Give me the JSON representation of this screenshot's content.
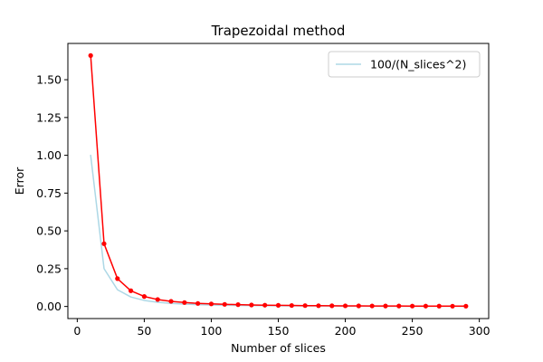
{
  "chart_data": {
    "type": "line",
    "title": "Trapezoidal method",
    "xlabel": "Number of slices",
    "ylabel": "Error",
    "xlim": [
      -7,
      307
    ],
    "ylim": [
      -0.08,
      1.74
    ],
    "xticks": [
      0,
      50,
      100,
      150,
      200,
      250,
      300
    ],
    "xtick_labels": [
      "0",
      "50",
      "100",
      "150",
      "200",
      "250",
      "300"
    ],
    "yticks": [
      0.0,
      0.25,
      0.5,
      0.75,
      1.0,
      1.25,
      1.5
    ],
    "ytick_labels": [
      "0.00",
      "0.25",
      "0.50",
      "0.75",
      "1.00",
      "1.25",
      "1.50"
    ],
    "grid": false,
    "legend_position": "top-right",
    "x": [
      10,
      20,
      30,
      40,
      50,
      60,
      70,
      80,
      90,
      100,
      110,
      120,
      130,
      140,
      150,
      160,
      170,
      180,
      190,
      200,
      210,
      220,
      230,
      240,
      250,
      260,
      270,
      280,
      290
    ],
    "series": [
      {
        "name": "100/(N_slices^2)",
        "color": "#add8e6",
        "marker": false,
        "legend": true,
        "values": [
          1.0,
          0.25,
          0.111,
          0.0625,
          0.04,
          0.0278,
          0.0204,
          0.0156,
          0.0123,
          0.01,
          0.0083,
          0.0069,
          0.0059,
          0.0051,
          0.0044,
          0.0039,
          0.0035,
          0.0031,
          0.0028,
          0.0025,
          0.0023,
          0.0021,
          0.0019,
          0.0017,
          0.0016,
          0.0015,
          0.0014,
          0.0013,
          0.0012
        ]
      },
      {
        "name": "",
        "color": "#ff0000",
        "marker": true,
        "legend": false,
        "values": [
          1.66,
          0.415,
          0.184,
          0.104,
          0.066,
          0.046,
          0.034,
          0.026,
          0.02,
          0.017,
          0.014,
          0.012,
          0.0098,
          0.0085,
          0.0074,
          0.0065,
          0.0057,
          0.0051,
          0.0046,
          0.0042,
          0.0038,
          0.0034,
          0.0031,
          0.0029,
          0.0027,
          0.0025,
          0.0023,
          0.0021,
          0.002
        ]
      }
    ]
  }
}
